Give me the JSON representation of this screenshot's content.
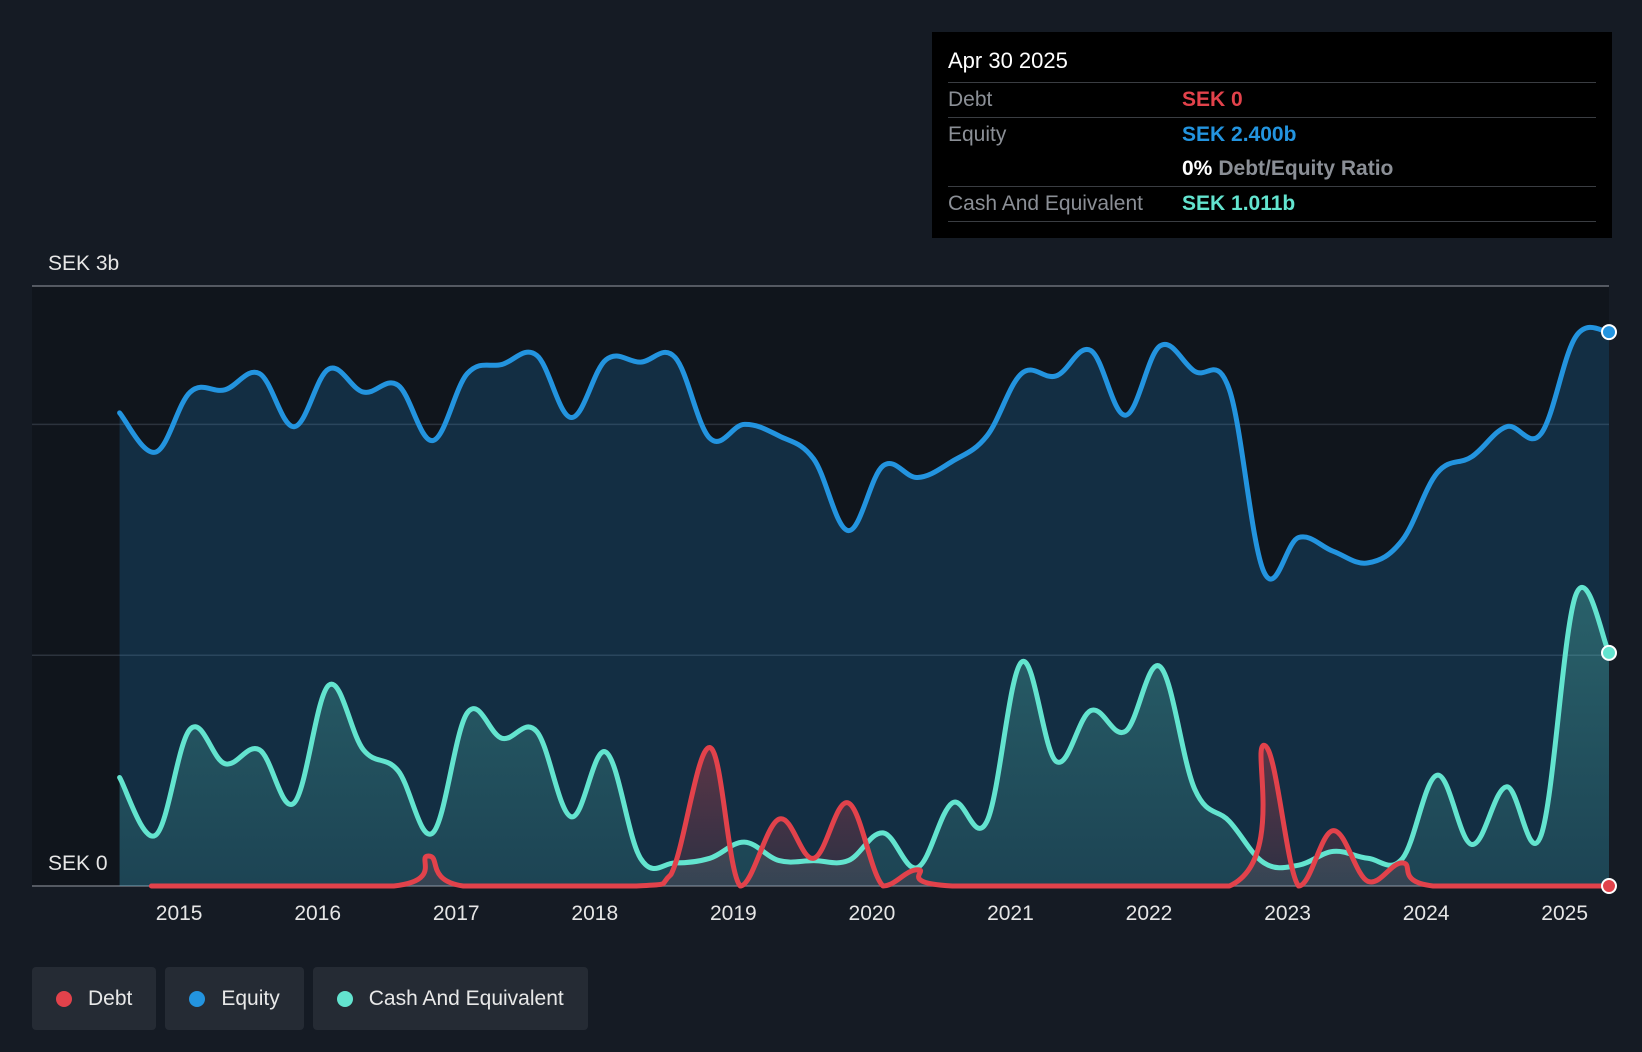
{
  "colors": {
    "debt": "#e2424b",
    "equity": "#2394df",
    "cash": "#63e4cf",
    "background": "#151b24"
  },
  "tooltip": {
    "date": "Apr 30 2025",
    "debt_label": "Debt",
    "debt_value": "SEK 0",
    "equity_label": "Equity",
    "equity_value": "SEK 2.400b",
    "ratio_pct": "0%",
    "ratio_label": "Debt/Equity Ratio",
    "cash_label": "Cash And Equivalent",
    "cash_value": "SEK 1.011b"
  },
  "legend": [
    {
      "key": "debt",
      "label": "Debt"
    },
    {
      "key": "equity",
      "label": "Equity"
    },
    {
      "key": "cash",
      "label": "Cash And Equivalent"
    }
  ],
  "chart_data": {
    "type": "area",
    "y_top_label": "SEK 3b",
    "y_bottom_label": "SEK 0",
    "ylim": [
      0,
      2.6
    ],
    "xlim": [
      2014.4,
      2025.32
    ],
    "x_ticks": [
      "2015",
      "2016",
      "2017",
      "2018",
      "2019",
      "2020",
      "2021",
      "2022",
      "2023",
      "2024",
      "2025"
    ],
    "x_tick_values": [
      2015,
      2016,
      2017,
      2018,
      2019,
      2020,
      2021,
      2022,
      2023,
      2024,
      2025
    ],
    "gridlines": [
      1.0,
      2.0
    ],
    "series": [
      {
        "key": "equity",
        "name": "Equity",
        "x": [
          2014.57,
          2014.83,
          2015.08,
          2015.33,
          2015.58,
          2015.83,
          2016.08,
          2016.33,
          2016.58,
          2016.83,
          2017.08,
          2017.33,
          2017.58,
          2017.83,
          2018.08,
          2018.33,
          2018.58,
          2018.83,
          2019.08,
          2019.33,
          2019.58,
          2019.83,
          2020.08,
          2020.33,
          2020.58,
          2020.83,
          2021.08,
          2021.33,
          2021.58,
          2021.83,
          2022.08,
          2022.33,
          2022.58,
          2022.83,
          2023.08,
          2023.33,
          2023.58,
          2023.83,
          2024.08,
          2024.33,
          2024.58,
          2024.83,
          2025.08,
          2025.32
        ],
        "values": [
          2.05,
          1.88,
          2.14,
          2.15,
          2.22,
          1.99,
          2.24,
          2.14,
          2.17,
          1.93,
          2.22,
          2.26,
          2.3,
          2.03,
          2.28,
          2.27,
          2.29,
          1.94,
          2.0,
          1.95,
          1.85,
          1.54,
          1.82,
          1.77,
          1.84,
          1.95,
          2.22,
          2.21,
          2.32,
          2.04,
          2.34,
          2.23,
          2.15,
          1.36,
          1.51,
          1.45,
          1.4,
          1.5,
          1.79,
          1.86,
          1.99,
          1.96,
          2.38,
          2.4
        ]
      },
      {
        "key": "cash",
        "name": "Cash And Equivalent",
        "x": [
          2014.57,
          2014.83,
          2015.08,
          2015.33,
          2015.58,
          2015.83,
          2016.08,
          2016.33,
          2016.58,
          2016.83,
          2017.08,
          2017.33,
          2017.58,
          2017.83,
          2018.08,
          2018.33,
          2018.58,
          2018.83,
          2019.08,
          2019.33,
          2019.58,
          2019.83,
          2020.08,
          2020.33,
          2020.58,
          2020.83,
          2021.08,
          2021.33,
          2021.58,
          2021.83,
          2022.08,
          2022.33,
          2022.58,
          2022.83,
          2023.08,
          2023.33,
          2023.58,
          2023.83,
          2024.08,
          2024.33,
          2024.58,
          2024.83,
          2025.08,
          2025.32
        ],
        "values": [
          0.47,
          0.22,
          0.68,
          0.53,
          0.59,
          0.36,
          0.87,
          0.59,
          0.5,
          0.23,
          0.75,
          0.64,
          0.67,
          0.3,
          0.58,
          0.12,
          0.1,
          0.12,
          0.19,
          0.11,
          0.11,
          0.11,
          0.23,
          0.08,
          0.36,
          0.28,
          0.97,
          0.54,
          0.76,
          0.67,
          0.95,
          0.42,
          0.28,
          0.1,
          0.09,
          0.15,
          0.12,
          0.12,
          0.48,
          0.18,
          0.43,
          0.22,
          1.26,
          1.01
        ]
      },
      {
        "key": "debt",
        "name": "Debt",
        "x": [
          2014.8,
          2016.55,
          2016.8,
          2017.05,
          2018.3,
          2018.55,
          2018.83,
          2019.05,
          2019.33,
          2019.58,
          2019.83,
          2020.08,
          2020.33,
          2020.58,
          2022.58,
          2022.83,
          2023.08,
          2023.33,
          2023.58,
          2023.83,
          2024.05,
          2025.32
        ],
        "values": [
          0,
          0,
          0.13,
          0,
          0,
          0.05,
          0.6,
          0,
          0.29,
          0.12,
          0.36,
          0,
          0.07,
          0,
          0,
          0.61,
          0,
          0.24,
          0.02,
          0.1,
          0,
          0
        ]
      }
    ]
  }
}
